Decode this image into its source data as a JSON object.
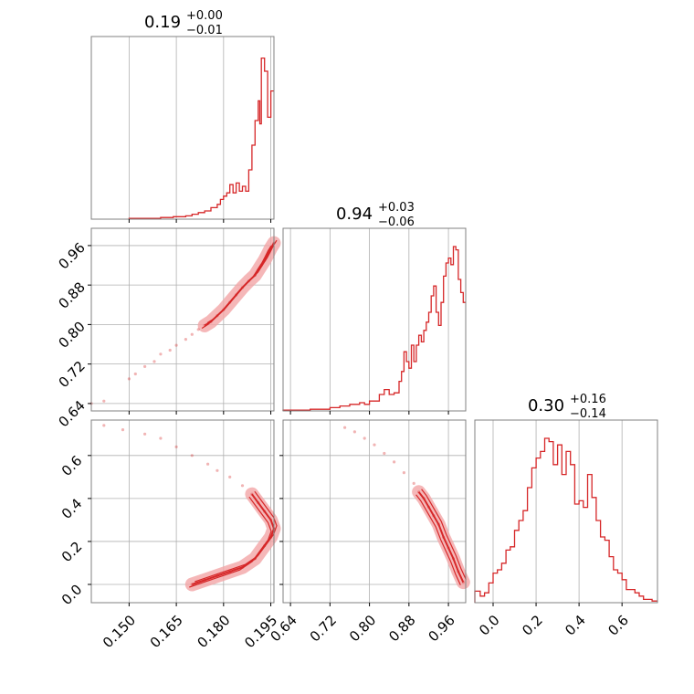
{
  "chart_data": {
    "type": "corner",
    "colors": {
      "line": "#d62728",
      "grid": "#b0b0b0",
      "frame": "#808080"
    },
    "grid": true,
    "parameters": [
      {
        "title": {
          "median": "0.19",
          "plus": "+0.00",
          "minus": "−0.01"
        },
        "range": [
          0.138,
          0.196
        ],
        "ticks": [
          0.15,
          0.165,
          0.18,
          0.195
        ],
        "tick_labels": [
          "0.150",
          "0.165",
          "0.180",
          "0.195"
        ]
      },
      {
        "title": {
          "median": "0.94",
          "plus": "+0.03",
          "minus": "−0.06"
        },
        "range": [
          0.625,
          0.995
        ],
        "ticks": [
          0.64,
          0.72,
          0.8,
          0.88,
          0.96
        ],
        "tick_labels": [
          "0.64",
          "0.72",
          "0.80",
          "0.88",
          "0.96"
        ]
      },
      {
        "title": {
          "median": "0.30",
          "plus": "+0.16",
          "minus": "−0.14"
        },
        "range": [
          -0.085,
          0.765
        ],
        "ticks": [
          0.0,
          0.2,
          0.4,
          0.6
        ],
        "tick_labels": [
          "0.0",
          "0.2",
          "0.4",
          "0.6"
        ]
      }
    ],
    "histograms": [
      {
        "param": 0,
        "edges": [
          0.15,
          0.16,
          0.164,
          0.168,
          0.17,
          0.172,
          0.174,
          0.176,
          0.178,
          0.179,
          0.18,
          0.181,
          0.182,
          0.183,
          0.184,
          0.185,
          0.186,
          0.187,
          0.188,
          0.189,
          0.19,
          0.191,
          0.1915,
          0.192,
          0.193,
          0.194,
          0.195,
          0.196
        ],
        "values": [
          0.005,
          0.01,
          0.015,
          0.02,
          0.03,
          0.04,
          0.05,
          0.07,
          0.09,
          0.12,
          0.14,
          0.16,
          0.21,
          0.16,
          0.22,
          0.17,
          0.2,
          0.17,
          0.3,
          0.45,
          0.6,
          0.72,
          0.58,
          0.98,
          0.9,
          0.62,
          0.78
        ]
      },
      {
        "param": 1,
        "edges": [
          0.625,
          0.68,
          0.72,
          0.74,
          0.76,
          0.78,
          0.79,
          0.8,
          0.81,
          0.82,
          0.83,
          0.84,
          0.85,
          0.86,
          0.865,
          0.87,
          0.875,
          0.88,
          0.885,
          0.89,
          0.895,
          0.9,
          0.905,
          0.91,
          0.915,
          0.92,
          0.925,
          0.93,
          0.935,
          0.94,
          0.945,
          0.95,
          0.955,
          0.96,
          0.965,
          0.97,
          0.975,
          0.98,
          0.985,
          0.99,
          0.995
        ],
        "values": [
          0.005,
          0.01,
          0.02,
          0.03,
          0.04,
          0.05,
          0.04,
          0.06,
          0.06,
          0.1,
          0.13,
          0.1,
          0.11,
          0.18,
          0.24,
          0.36,
          0.3,
          0.26,
          0.4,
          0.3,
          0.4,
          0.46,
          0.42,
          0.49,
          0.54,
          0.6,
          0.7,
          0.76,
          0.6,
          0.52,
          0.66,
          0.82,
          0.9,
          0.93,
          0.89,
          1.0,
          0.98,
          0.8,
          0.72,
          0.66
        ]
      },
      {
        "param": 2,
        "edges": [
          -0.085,
          -0.06,
          -0.04,
          -0.02,
          0.0,
          0.02,
          0.04,
          0.06,
          0.08,
          0.1,
          0.12,
          0.14,
          0.16,
          0.18,
          0.2,
          0.22,
          0.24,
          0.26,
          0.28,
          0.3,
          0.32,
          0.34,
          0.36,
          0.38,
          0.4,
          0.42,
          0.44,
          0.46,
          0.48,
          0.5,
          0.52,
          0.54,
          0.56,
          0.58,
          0.6,
          0.62,
          0.64,
          0.66,
          0.68,
          0.7,
          0.72,
          0.74,
          0.765
        ],
        "values": [
          0.07,
          0.04,
          0.06,
          0.12,
          0.18,
          0.2,
          0.24,
          0.32,
          0.34,
          0.44,
          0.5,
          0.56,
          0.7,
          0.82,
          0.88,
          0.92,
          1.0,
          0.98,
          0.84,
          0.96,
          0.78,
          0.92,
          0.84,
          0.6,
          0.62,
          0.58,
          0.78,
          0.64,
          0.5,
          0.4,
          0.38,
          0.28,
          0.2,
          0.18,
          0.14,
          0.08,
          0.08,
          0.06,
          0.04,
          0.02,
          0.02,
          0.01
        ]
      }
    ],
    "scatter_samples": [
      {
        "x_param": 0,
        "y_param": 1,
        "points": [
          [
            0.138,
            0.64
          ],
          [
            0.142,
            0.645
          ],
          [
            0.15,
            0.69
          ],
          [
            0.152,
            0.7
          ],
          [
            0.155,
            0.715
          ],
          [
            0.158,
            0.725
          ],
          [
            0.16,
            0.74
          ],
          [
            0.163,
            0.748
          ],
          [
            0.165,
            0.758
          ],
          [
            0.168,
            0.77
          ],
          [
            0.17,
            0.78
          ],
          [
            0.172,
            0.79
          ],
          [
            0.174,
            0.798
          ],
          [
            0.176,
            0.806
          ],
          [
            0.178,
            0.818
          ],
          [
            0.18,
            0.83
          ],
          [
            0.182,
            0.845
          ],
          [
            0.184,
            0.86
          ],
          [
            0.186,
            0.875
          ],
          [
            0.188,
            0.888
          ],
          [
            0.19,
            0.9
          ],
          [
            0.191,
            0.91
          ],
          [
            0.192,
            0.92
          ],
          [
            0.193,
            0.93
          ],
          [
            0.194,
            0.942
          ],
          [
            0.195,
            0.955
          ],
          [
            0.196,
            0.965
          ]
        ]
      },
      {
        "x_param": 0,
        "y_param": 2,
        "points": [
          [
            0.142,
            0.74
          ],
          [
            0.148,
            0.72
          ],
          [
            0.155,
            0.7
          ],
          [
            0.16,
            0.68
          ],
          [
            0.165,
            0.64
          ],
          [
            0.17,
            0.6
          ],
          [
            0.175,
            0.56
          ],
          [
            0.178,
            0.53
          ],
          [
            0.182,
            0.5
          ],
          [
            0.186,
            0.46
          ],
          [
            0.189,
            0.42
          ],
          [
            0.191,
            0.38
          ],
          [
            0.193,
            0.34
          ],
          [
            0.195,
            0.3
          ],
          [
            0.196,
            0.26
          ],
          [
            0.195,
            0.22
          ],
          [
            0.193,
            0.18
          ],
          [
            0.19,
            0.12
          ],
          [
            0.186,
            0.08
          ],
          [
            0.182,
            0.06
          ],
          [
            0.178,
            0.04
          ],
          [
            0.174,
            0.02
          ],
          [
            0.17,
            0.0
          ]
        ]
      },
      {
        "x_param": 1,
        "y_param": 2,
        "points": [
          [
            0.75,
            0.73
          ],
          [
            0.77,
            0.71
          ],
          [
            0.79,
            0.68
          ],
          [
            0.81,
            0.65
          ],
          [
            0.83,
            0.61
          ],
          [
            0.85,
            0.57
          ],
          [
            0.87,
            0.52
          ],
          [
            0.89,
            0.47
          ],
          [
            0.9,
            0.43
          ],
          [
            0.91,
            0.4
          ],
          [
            0.92,
            0.36
          ],
          [
            0.93,
            0.32
          ],
          [
            0.94,
            0.28
          ],
          [
            0.95,
            0.22
          ],
          [
            0.96,
            0.17
          ],
          [
            0.97,
            0.12
          ],
          [
            0.98,
            0.06
          ],
          [
            0.99,
            0.01
          ]
        ]
      }
    ]
  }
}
